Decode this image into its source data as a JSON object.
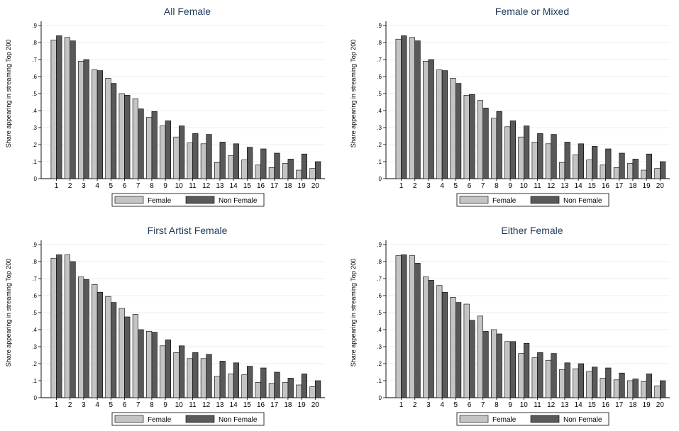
{
  "legend": {
    "female": "Female",
    "non_female": "Non Female"
  },
  "colors": {
    "female": "#c4c4c4",
    "non_female": "#595959",
    "bar_stroke": "#000000",
    "grid": "#e8eef3",
    "title": "#1e3b5a"
  },
  "chart_data": [
    {
      "type": "bar",
      "title": "All Female",
      "ylabel": "Share appearing in streaming Top 200",
      "xlabel": "",
      "ylim": [
        0,
        0.9
      ],
      "yticks": [
        ".9",
        ".8",
        ".7",
        ".6",
        ".5",
        ".4",
        ".3",
        ".2",
        ".1",
        "0"
      ],
      "categories": [
        "1",
        "2",
        "3",
        "4",
        "5",
        "6",
        "7",
        "8",
        "9",
        "10",
        "11",
        "12",
        "13",
        "14",
        "15",
        "16",
        "17",
        "18",
        "19",
        "20"
      ],
      "series": [
        {
          "name": "Female",
          "values": [
            0.815,
            0.83,
            0.69,
            0.64,
            0.59,
            0.5,
            0.47,
            0.36,
            0.31,
            0.245,
            0.21,
            0.205,
            0.095,
            0.135,
            0.11,
            0.08,
            0.065,
            0.09,
            0.05,
            0.06
          ]
        },
        {
          "name": "Non Female",
          "values": [
            0.84,
            0.81,
            0.7,
            0.635,
            0.56,
            0.49,
            0.41,
            0.395,
            0.34,
            0.31,
            0.265,
            0.26,
            0.215,
            0.205,
            0.185,
            0.175,
            0.15,
            0.115,
            0.145,
            0.1
          ]
        }
      ]
    },
    {
      "type": "bar",
      "title": "Female or Mixed",
      "ylabel": "Share appearing in streaming Top 200",
      "xlabel": "",
      "ylim": [
        0,
        0.9
      ],
      "yticks": [
        ".9",
        ".8",
        ".7",
        ".6",
        ".5",
        ".4",
        ".3",
        ".2",
        ".1",
        "0"
      ],
      "categories": [
        "1",
        "2",
        "3",
        "4",
        "5",
        "6",
        "7",
        "8",
        "9",
        "10",
        "11",
        "12",
        "13",
        "14",
        "15",
        "16",
        "17",
        "18",
        "19",
        "20"
      ],
      "series": [
        {
          "name": "Female",
          "values": [
            0.82,
            0.83,
            0.69,
            0.64,
            0.59,
            0.49,
            0.46,
            0.355,
            0.305,
            0.245,
            0.215,
            0.205,
            0.095,
            0.14,
            0.11,
            0.08,
            0.065,
            0.09,
            0.05,
            0.06
          ]
        },
        {
          "name": "Non Female",
          "values": [
            0.84,
            0.81,
            0.7,
            0.635,
            0.56,
            0.495,
            0.415,
            0.395,
            0.34,
            0.31,
            0.265,
            0.26,
            0.215,
            0.205,
            0.19,
            0.175,
            0.15,
            0.115,
            0.145,
            0.1
          ]
        }
      ]
    },
    {
      "type": "bar",
      "title": "First Artist Female",
      "ylabel": "Share appearing in streaming Top 200",
      "xlabel": "",
      "ylim": [
        0,
        0.9
      ],
      "yticks": [
        ".9",
        ".8",
        ".7",
        ".6",
        ".5",
        ".4",
        ".3",
        ".2",
        ".1",
        "0"
      ],
      "categories": [
        "1",
        "2",
        "3",
        "4",
        "5",
        "6",
        "7",
        "8",
        "9",
        "10",
        "11",
        "12",
        "13",
        "14",
        "15",
        "16",
        "17",
        "18",
        "19",
        "20"
      ],
      "series": [
        {
          "name": "Female",
          "values": [
            0.82,
            0.84,
            0.71,
            0.665,
            0.595,
            0.525,
            0.49,
            0.39,
            0.305,
            0.265,
            0.23,
            0.23,
            0.125,
            0.14,
            0.135,
            0.09,
            0.085,
            0.09,
            0.075,
            0.065
          ]
        },
        {
          "name": "Non Female",
          "values": [
            0.84,
            0.8,
            0.695,
            0.62,
            0.56,
            0.475,
            0.4,
            0.385,
            0.34,
            0.305,
            0.265,
            0.255,
            0.215,
            0.205,
            0.185,
            0.175,
            0.15,
            0.115,
            0.14,
            0.1
          ]
        }
      ]
    },
    {
      "type": "bar",
      "title": "Either Female",
      "ylabel": "Share appearing in streaming Top 200",
      "xlabel": "",
      "ylim": [
        0,
        0.9
      ],
      "yticks": [
        ".9",
        ".8",
        ".7",
        ".6",
        ".5",
        ".4",
        ".3",
        ".2",
        ".1",
        "0"
      ],
      "categories": [
        "1",
        "2",
        "3",
        "4",
        "5",
        "6",
        "7",
        "8",
        "9",
        "10",
        "11",
        "12",
        "13",
        "14",
        "15",
        "16",
        "17",
        "18",
        "19",
        "20"
      ],
      "series": [
        {
          "name": "Female",
          "values": [
            0.835,
            0.835,
            0.71,
            0.66,
            0.59,
            0.55,
            0.48,
            0.4,
            0.33,
            0.26,
            0.235,
            0.22,
            0.165,
            0.17,
            0.155,
            0.115,
            0.105,
            0.1,
            0.095,
            0.07
          ]
        },
        {
          "name": "Non Female",
          "values": [
            0.84,
            0.79,
            0.69,
            0.62,
            0.56,
            0.455,
            0.39,
            0.375,
            0.33,
            0.32,
            0.265,
            0.26,
            0.205,
            0.2,
            0.18,
            0.175,
            0.145,
            0.11,
            0.14,
            0.1
          ]
        }
      ]
    }
  ]
}
